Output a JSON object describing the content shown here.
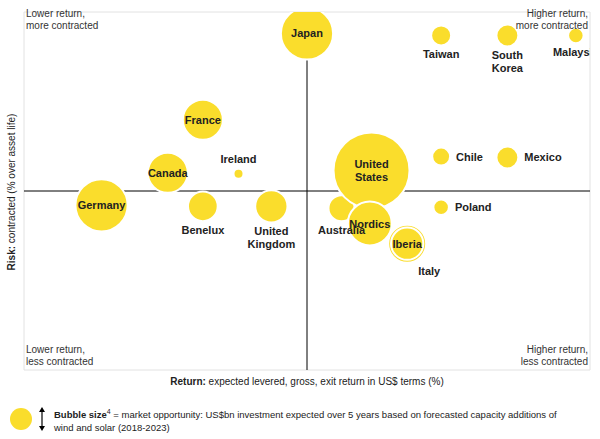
{
  "chart_data": {
    "type": "scatter",
    "x_label": "Return: expected levered, gross, exit return in US$ terms (%)",
    "y_label": "Risk: contracted (% over asset life)",
    "xlim": [
      0,
      10
    ],
    "ylim": [
      -0.5,
      10.5
    ],
    "tick_labels": false,
    "grid": false,
    "color": "#fadd2c",
    "quadrant_labels": {
      "top_left": [
        "Lower return,",
        "more contracted"
      ],
      "top_right": [
        "Higher return,",
        "more contracted"
      ],
      "bottom_left": [
        "Lower return,",
        "less contracted"
      ],
      "bottom_right": [
        "Higher return,",
        "less contracted"
      ]
    },
    "size_note": {
      "label": "Bubble size",
      "footnote": "4",
      "text": "= market opportunity: US$bn investment expected over 5 years based on forecasted capacity additions of wind and solar (2018-2023)"
    },
    "points": [
      {
        "name": "Japan",
        "x": 5.0,
        "y": 9.84,
        "size": 68
      },
      {
        "name": "Taiwan",
        "x": 7.37,
        "y": 9.78,
        "size": 10
      },
      {
        "name": "South Korea",
        "x": 8.54,
        "y": 9.78,
        "size": 12
      },
      {
        "name": "Malaysia",
        "x": 9.75,
        "y": 9.78,
        "size": 6
      },
      {
        "name": "France",
        "x": 3.16,
        "y": 7.19,
        "size": 40
      },
      {
        "name": "Ireland",
        "x": 3.79,
        "y": 5.53,
        "size": 2.5
      },
      {
        "name": "Canada",
        "x": 2.54,
        "y": 5.56,
        "size": 40
      },
      {
        "name": "Germany",
        "x": 1.37,
        "y": 4.56,
        "size": 68
      },
      {
        "name": "Benelux",
        "x": 3.16,
        "y": 4.53,
        "size": 22
      },
      {
        "name": "United Kingdom",
        "x": 4.37,
        "y": 4.53,
        "size": 26
      },
      {
        "name": "Australia",
        "x": 5.61,
        "y": 4.47,
        "size": 17
      },
      {
        "name": "United States",
        "x": 6.14,
        "y": 5.63,
        "size": 144
      },
      {
        "name": "Chile",
        "x": 7.37,
        "y": 6.06,
        "size": 8
      },
      {
        "name": "Mexico",
        "x": 8.54,
        "y": 6.03,
        "size": 12
      },
      {
        "name": "Poland",
        "x": 7.37,
        "y": 4.5,
        "size": 6
      },
      {
        "name": "Italy",
        "x": 6.77,
        "y": 3.38,
        "size": 36
      },
      {
        "name": "Nordics",
        "x": 6.11,
        "y": 4.0,
        "size": 48
      },
      {
        "name": "Iberia",
        "x": 6.77,
        "y": 3.38,
        "size": 26
      }
    ]
  }
}
